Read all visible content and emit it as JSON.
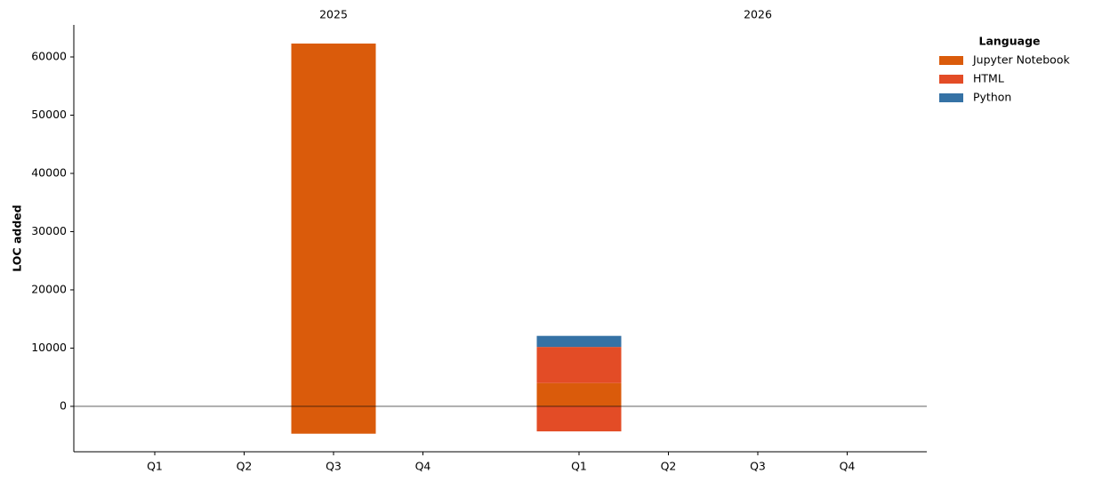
{
  "chart_data": {
    "type": "bar",
    "y_label": "LOC added",
    "groups": [
      {
        "label": "2025",
        "categories": [
          "Q1",
          "Q2",
          "Q3",
          "Q4"
        ]
      },
      {
        "label": "2026",
        "categories": [
          "Q1",
          "Q2",
          "Q3",
          "Q4"
        ]
      }
    ],
    "legend_title": "Language",
    "series": [
      {
        "name": "Jupyter Notebook",
        "color": "#DA5B0B",
        "values": [
          0,
          0,
          62300,
          0,
          4000,
          0,
          0,
          0
        ],
        "removed": [
          0,
          0,
          -4700,
          0,
          0,
          0,
          0,
          0
        ]
      },
      {
        "name": "HTML",
        "color": "#E34C26",
        "values": [
          0,
          0,
          0,
          0,
          6200,
          0,
          0,
          0
        ],
        "removed": [
          0,
          0,
          0,
          0,
          -4300,
          0,
          0,
          0
        ]
      },
      {
        "name": "Python",
        "color": "#3572A5",
        "values": [
          0,
          0,
          0,
          0,
          1900,
          0,
          0,
          0
        ],
        "removed": [
          0,
          0,
          0,
          0,
          0,
          0,
          0,
          0
        ]
      }
    ],
    "ylim": [
      -7800,
      65500
    ],
    "yticks": [
      0,
      10000,
      20000,
      30000,
      40000,
      50000,
      60000
    ],
    "grid": false,
    "legend": "outside-right"
  }
}
